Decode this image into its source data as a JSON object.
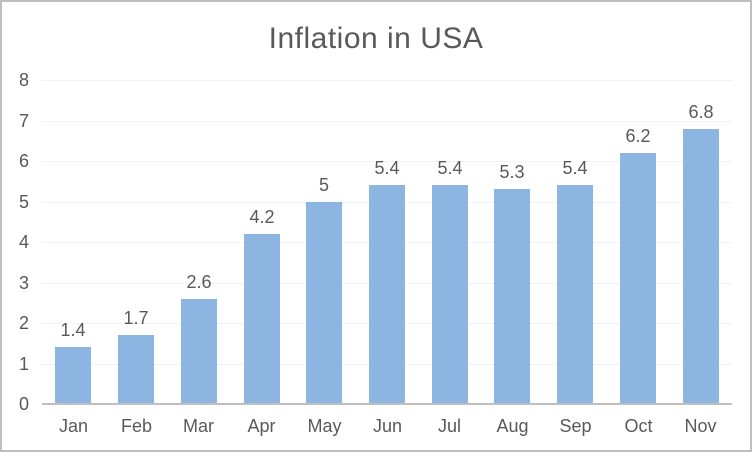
{
  "chart_data": {
    "type": "bar",
    "title": "Inflation in USA",
    "categories": [
      "Jan",
      "Feb",
      "Mar",
      "Apr",
      "May",
      "Jun",
      "Jul",
      "Aug",
      "Sep",
      "Oct",
      "Nov"
    ],
    "values": [
      1.4,
      1.7,
      2.6,
      4.2,
      5,
      5.4,
      5.4,
      5.3,
      5.4,
      6.2,
      6.8
    ],
    "value_labels": [
      "1.4",
      "1.7",
      "2.6",
      "4.2",
      "5",
      "5.4",
      "5.4",
      "5.3",
      "5.4",
      "6.2",
      "6.8"
    ],
    "y_ticks": [
      0,
      1,
      2,
      3,
      4,
      5,
      6,
      7,
      8
    ],
    "ylim": [
      0,
      8
    ],
    "xlabel": "",
    "ylabel": "",
    "grid": true,
    "legend": false,
    "colors": {
      "bar_fill": "#8CB5E1",
      "title_text": "#595959",
      "axis_text": "#595959",
      "data_label_text": "#595959",
      "gridline": "#F2F2F2",
      "axis_line": "#BFBFBF",
      "chart_border": "#BFBFBF",
      "background": "#FFFFFF"
    }
  }
}
